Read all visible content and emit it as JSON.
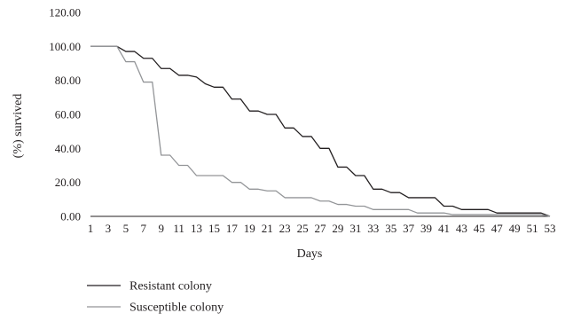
{
  "chart_data": {
    "type": "line",
    "xlabel": "Days",
    "ylabel": "(%) survived",
    "ylim": [
      0,
      120
    ],
    "yticks": [
      "0.00",
      "20.00",
      "40.00",
      "60.00",
      "80.00",
      "100.00",
      "120.00"
    ],
    "xlim": [
      1,
      53
    ],
    "xticks": [
      1,
      3,
      5,
      7,
      9,
      11,
      13,
      15,
      17,
      19,
      21,
      23,
      25,
      27,
      29,
      31,
      33,
      35,
      37,
      39,
      41,
      43,
      45,
      47,
      49,
      51,
      53
    ],
    "grid": false,
    "legend_position": "bottom-left",
    "x": [
      1,
      2,
      3,
      4,
      5,
      6,
      7,
      8,
      9,
      10,
      11,
      12,
      13,
      14,
      15,
      16,
      17,
      18,
      19,
      20,
      21,
      22,
      23,
      24,
      25,
      26,
      27,
      28,
      29,
      30,
      31,
      32,
      33,
      34,
      35,
      36,
      37,
      38,
      39,
      40,
      41,
      42,
      43,
      44,
      45,
      46,
      47,
      48,
      49,
      50,
      51,
      52,
      53
    ],
    "series": [
      {
        "name": "Resistant colony",
        "color": "#231f20",
        "values": [
          100,
          100,
          100,
          100,
          97,
          97,
          93,
          93,
          87,
          87,
          83,
          83,
          82,
          78,
          76,
          76,
          69,
          69,
          62,
          62,
          60,
          60,
          52,
          52,
          47,
          47,
          40,
          40,
          29,
          29,
          24,
          24,
          16,
          16,
          14,
          14,
          11,
          11,
          11,
          11,
          6,
          6,
          4,
          4,
          4,
          4,
          2,
          2,
          2,
          2,
          2,
          2,
          0
        ]
      },
      {
        "name": "Susceptible colony",
        "color": "#939598",
        "values": [
          100,
          100,
          100,
          100,
          91,
          91,
          79,
          79,
          36,
          36,
          30,
          30,
          24,
          24,
          24,
          24,
          20,
          20,
          16,
          16,
          15,
          15,
          11,
          11,
          11,
          11,
          9,
          9,
          7,
          7,
          6,
          6,
          4,
          4,
          4,
          4,
          4,
          2,
          2,
          2,
          2,
          1,
          1,
          1,
          1,
          1,
          1,
          1,
          1,
          1,
          1,
          1,
          0
        ]
      }
    ]
  }
}
